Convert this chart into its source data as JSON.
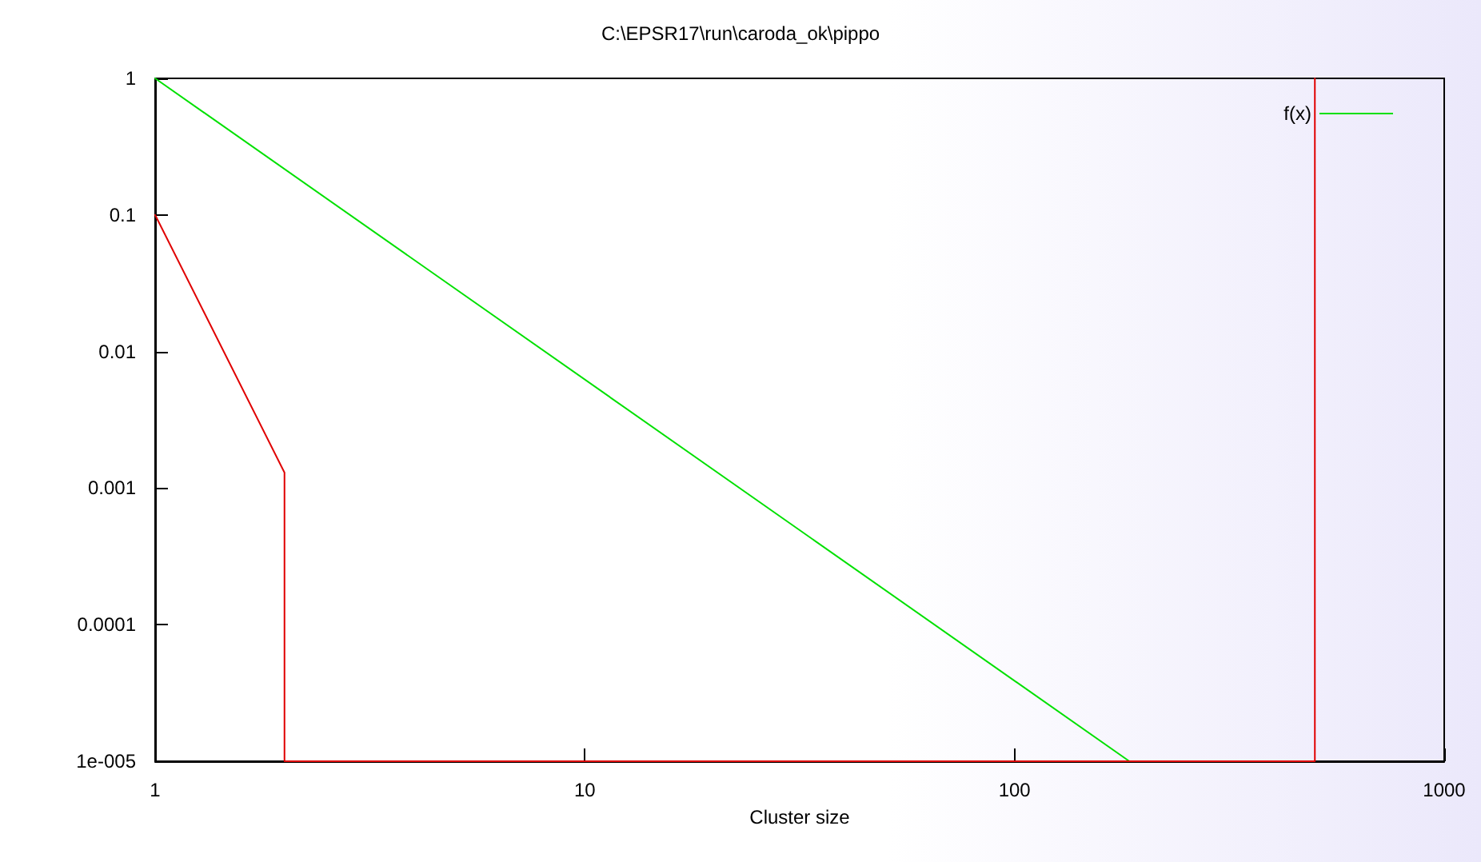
{
  "chart_data": {
    "type": "line",
    "title": "C:\\EPSR17\\run\\caroda_ok\\pippo",
    "xlabel": "Cluster size",
    "series": [
      {
        "name": "f(x)",
        "color": "#00e000",
        "x": [
          1,
          185
        ],
        "values": [
          1,
          1e-05
        ]
      },
      {
        "color": "#e00000",
        "x": [
          1,
          2,
          2,
          500,
          500
        ],
        "values": [
          0.1,
          0.0013,
          1e-05,
          1e-05,
          1
        ]
      }
    ],
    "log": "xy",
    "xlim": [
      1,
      1000
    ],
    "ylim": [
      1e-05,
      1
    ],
    "xticks": [
      1,
      10,
      100,
      1000
    ],
    "yticks": [
      {
        "value": 1e-05,
        "label": "1e-005"
      },
      0.0001,
      0.001,
      0.01,
      0.1,
      1
    ],
    "grid": false,
    "legend": "top right",
    "marker": "none",
    "line_style": "solid"
  }
}
